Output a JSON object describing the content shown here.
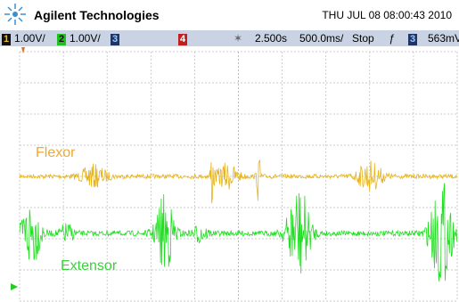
{
  "header": {
    "brand": "Agilent Technologies",
    "datetime": "THU JUL 08 08:00:43 2010"
  },
  "status_bar": {
    "ch1_label": "1",
    "ch1_scale": "1.00V/",
    "ch2_label": "2",
    "ch2_scale": "1.00V/",
    "ch3_label": "3",
    "ch4_label": "4",
    "time_delay": "2.500s",
    "time_scale": "500.0ms/",
    "run_state": "Stop",
    "trigger_slope": "ƒ",
    "trigger_source": "3",
    "trigger_level": "563mV"
  },
  "traces": {
    "flexor": "Flexor",
    "extensor": "Extensor"
  }
}
